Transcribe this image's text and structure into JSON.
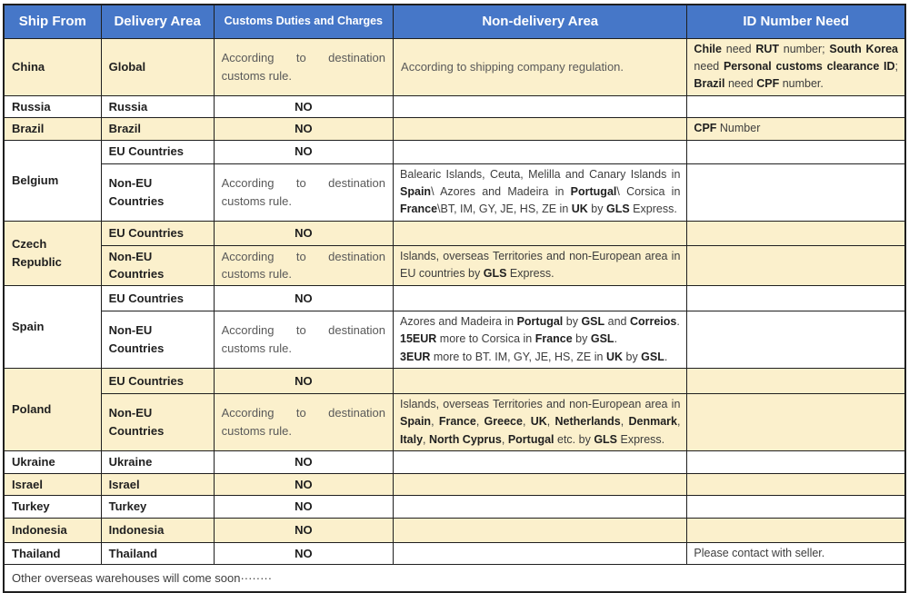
{
  "colors": {
    "header_bg": "#4677C8",
    "header_text": "#FFFFFF",
    "row_cream": "#FBF0CC",
    "row_white": "#FFFFFF",
    "border": "#1F1F1F",
    "text": "#3D3D3D",
    "bold_text": "#1F1F1F"
  },
  "headers": [
    "Ship From",
    "Delivery Area",
    "Customs Duties and Charges",
    "Non-delivery Area",
    "ID Number Need"
  ],
  "common": {
    "according": "According to destination customs rule.",
    "no": "NO",
    "eu": "EU Countries",
    "non_eu": "Non-EU Countries"
  },
  "rows": {
    "china": {
      "ship_from": "China",
      "delivery_area": "Global",
      "non_delivery": "According to shipping company regulation.",
      "id_need": [
        {
          "t": "Chile",
          "b": true
        },
        {
          "t": " need "
        },
        {
          "t": "RUT",
          "b": true
        },
        {
          "t": " number; "
        },
        {
          "t": "South Korea",
          "b": true
        },
        {
          "t": " need "
        },
        {
          "t": "Personal customs clearance ID",
          "b": true
        },
        {
          "t": "; "
        },
        {
          "t": "Brazil",
          "b": true
        },
        {
          "t": " need "
        },
        {
          "t": "CPF",
          "b": true
        },
        {
          "t": " number."
        }
      ]
    },
    "russia": {
      "ship_from": "Russia",
      "delivery_area": "Russia"
    },
    "brazil": {
      "ship_from": "Brazil",
      "delivery_area": "Brazil",
      "id_need": [
        {
          "t": "CPF",
          "b": true
        },
        {
          "t": " Number"
        }
      ]
    },
    "belgium": {
      "ship_from": "Belgium",
      "non_delivery": [
        {
          "t": "Balearic Islands, Ceuta, Melilla and Canary Islands in "
        },
        {
          "t": "Spain",
          "b": true
        },
        {
          "t": "\\ Azores and Madeira in "
        },
        {
          "t": "Portugal",
          "b": true
        },
        {
          "t": "\\ Corsica in "
        },
        {
          "t": "France",
          "b": true
        },
        {
          "t": "\\BT, IM, GY, JE, HS, ZE in "
        },
        {
          "t": "UK",
          "b": true
        },
        {
          "t": " by "
        },
        {
          "t": "GLS",
          "b": true
        },
        {
          "t": " Express."
        }
      ]
    },
    "czech": {
      "ship_from": "Czech Republic",
      "non_delivery": [
        {
          "t": "Islands, overseas Territories and non-European area in EU countries by "
        },
        {
          "t": "GLS",
          "b": true
        },
        {
          "t": " Express."
        }
      ]
    },
    "spain": {
      "ship_from": "Spain",
      "non_delivery": [
        {
          "t": "Azores and Madeira in "
        },
        {
          "t": "Portugal",
          "b": true
        },
        {
          "t": " by "
        },
        {
          "t": "GSL",
          "b": true
        },
        {
          "t": " and "
        },
        {
          "t": "Correios",
          "b": true
        },
        {
          "t": ".\n"
        },
        {
          "t": "15EUR",
          "b": true
        },
        {
          "t": " more to Corsica in "
        },
        {
          "t": "France",
          "b": true
        },
        {
          "t": " by "
        },
        {
          "t": "GSL",
          "b": true
        },
        {
          "t": ".\n"
        },
        {
          "t": "3EUR",
          "b": true
        },
        {
          "t": " more to BT. IM, GY, JE, HS, ZE in "
        },
        {
          "t": "UK",
          "b": true
        },
        {
          "t": " by "
        },
        {
          "t": "GSL",
          "b": true
        },
        {
          "t": "."
        }
      ]
    },
    "poland": {
      "ship_from": "Poland",
      "non_delivery": [
        {
          "t": "Islands, overseas Territories and non-European area in "
        },
        {
          "t": "Spain",
          "b": true
        },
        {
          "t": ", "
        },
        {
          "t": "France",
          "b": true
        },
        {
          "t": ", "
        },
        {
          "t": "Greece",
          "b": true
        },
        {
          "t": ", "
        },
        {
          "t": "UK",
          "b": true
        },
        {
          "t": ", "
        },
        {
          "t": "Netherlands",
          "b": true
        },
        {
          "t": ", "
        },
        {
          "t": "Denmark",
          "b": true
        },
        {
          "t": ", "
        },
        {
          "t": "Italy",
          "b": true
        },
        {
          "t": ", "
        },
        {
          "t": "North Cyprus",
          "b": true
        },
        {
          "t": ", "
        },
        {
          "t": "Portugal",
          "b": true
        },
        {
          "t": " etc. by "
        },
        {
          "t": "GLS",
          "b": true
        },
        {
          "t": " Express."
        }
      ]
    },
    "ukraine": {
      "ship_from": "Ukraine",
      "delivery_area": "Ukraine"
    },
    "israel": {
      "ship_from": "Israel",
      "delivery_area": "Israel"
    },
    "turkey": {
      "ship_from": "Turkey",
      "delivery_area": "Turkey"
    },
    "indonesia": {
      "ship_from": "Indonesia",
      "delivery_area": "Indonesia"
    },
    "thailand": {
      "ship_from": "Thailand",
      "delivery_area": "Thailand",
      "id_need": "Please contact with seller."
    }
  },
  "footer": "Other overseas warehouses will come soon········"
}
